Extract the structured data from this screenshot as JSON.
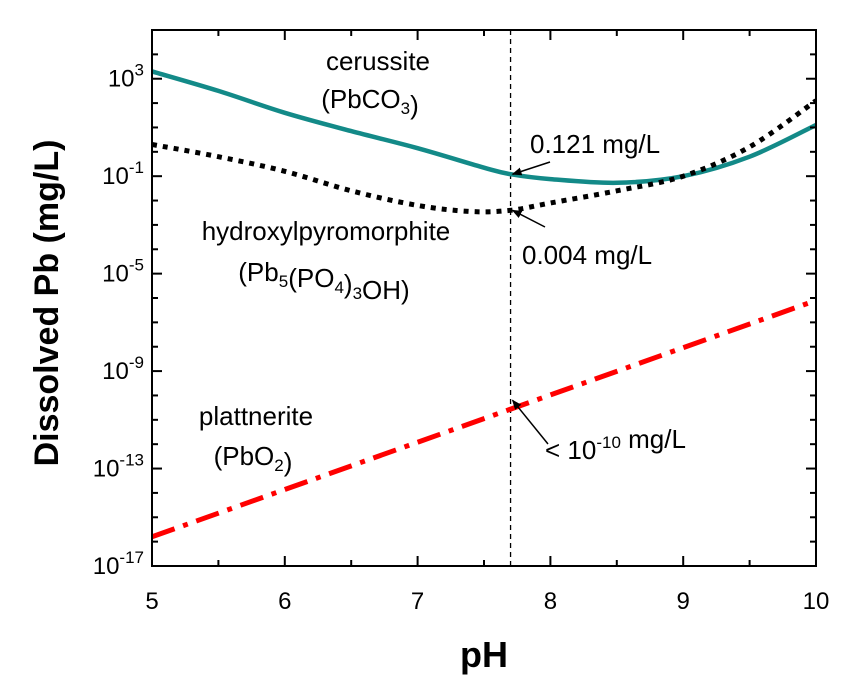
{
  "chart_data": {
    "type": "line",
    "title": "",
    "xlabel": "pH",
    "ylabel": "Dissolved Pb (mg/L)",
    "xlim": [
      5,
      10
    ],
    "ylim_log10": [
      -17,
      5
    ],
    "y_scale": "log",
    "x_ticks": [
      "5",
      "6",
      "7",
      "8",
      "9",
      "10"
    ],
    "y_ticks": [
      {
        "base": "10",
        "exp": "-17",
        "log": -17
      },
      {
        "base": "10",
        "exp": "-13",
        "log": -13
      },
      {
        "base": "10",
        "exp": "-9",
        "log": -9
      },
      {
        "base": "10",
        "exp": "-5",
        "log": -5
      },
      {
        "base": "10",
        "exp": "-1",
        "log": -1
      },
      {
        "base": "10",
        "exp": "3",
        "log": 3
      }
    ],
    "grid": false,
    "reference_line": {
      "x": 7.7
    },
    "series": [
      {
        "label_main": "cerussite",
        "label_formula": [
          {
            "t": "(PbCO"
          },
          {
            "t": "3",
            "sub": true
          },
          {
            "t": ")"
          }
        ],
        "color": "#138a88",
        "style": "solid",
        "x": [
          5.0,
          5.5,
          6.0,
          6.5,
          7.0,
          7.5,
          7.7,
          8.0,
          8.5,
          9.0,
          9.5,
          10.0
        ],
        "log10_y": [
          3.3,
          2.5,
          1.6,
          0.85,
          0.15,
          -0.65,
          -0.92,
          -1.12,
          -1.27,
          -1.0,
          -0.2,
          1.1
        ]
      },
      {
        "label_main": "hydroxylpyromorphite",
        "label_formula": [
          {
            "t": "(Pb"
          },
          {
            "t": "5",
            "sub": true
          },
          {
            "t": "(PO"
          },
          {
            "t": "4",
            "sub": true
          },
          {
            "t": ")"
          },
          {
            "t": "3",
            "sub": true
          },
          {
            "t": "OH)"
          }
        ],
        "color": "#000000",
        "style": "dotted",
        "x": [
          5.0,
          5.5,
          6.0,
          6.5,
          7.0,
          7.4,
          7.7,
          8.0,
          8.5,
          9.0,
          9.5,
          10.0
        ],
        "log10_y": [
          0.3,
          -0.2,
          -0.8,
          -1.6,
          -2.2,
          -2.45,
          -2.4,
          -2.1,
          -1.6,
          -1.0,
          0.2,
          2.1
        ]
      },
      {
        "label_main": "plattnerite",
        "label_formula": [
          {
            "t": "(PbO"
          },
          {
            "t": "2",
            "sub": true
          },
          {
            "t": ")"
          }
        ],
        "color": "#ff0000",
        "style": "dashdot",
        "x": [
          5.0,
          10.0
        ],
        "log10_y": [
          -15.8,
          -6.1
        ]
      }
    ],
    "annotations": [
      {
        "text": "0.121 mg/L",
        "x": 7.7,
        "log10_y": -0.92
      },
      {
        "text": "0.004 mg/L",
        "x": 7.7,
        "log10_y": -2.4
      },
      {
        "text_parts": [
          {
            "t": "< 10"
          },
          {
            "t": "-10",
            "sup": true
          },
          {
            "t": " mg/L"
          }
        ],
        "x": 7.7,
        "log10_y": -10.2
      }
    ]
  }
}
